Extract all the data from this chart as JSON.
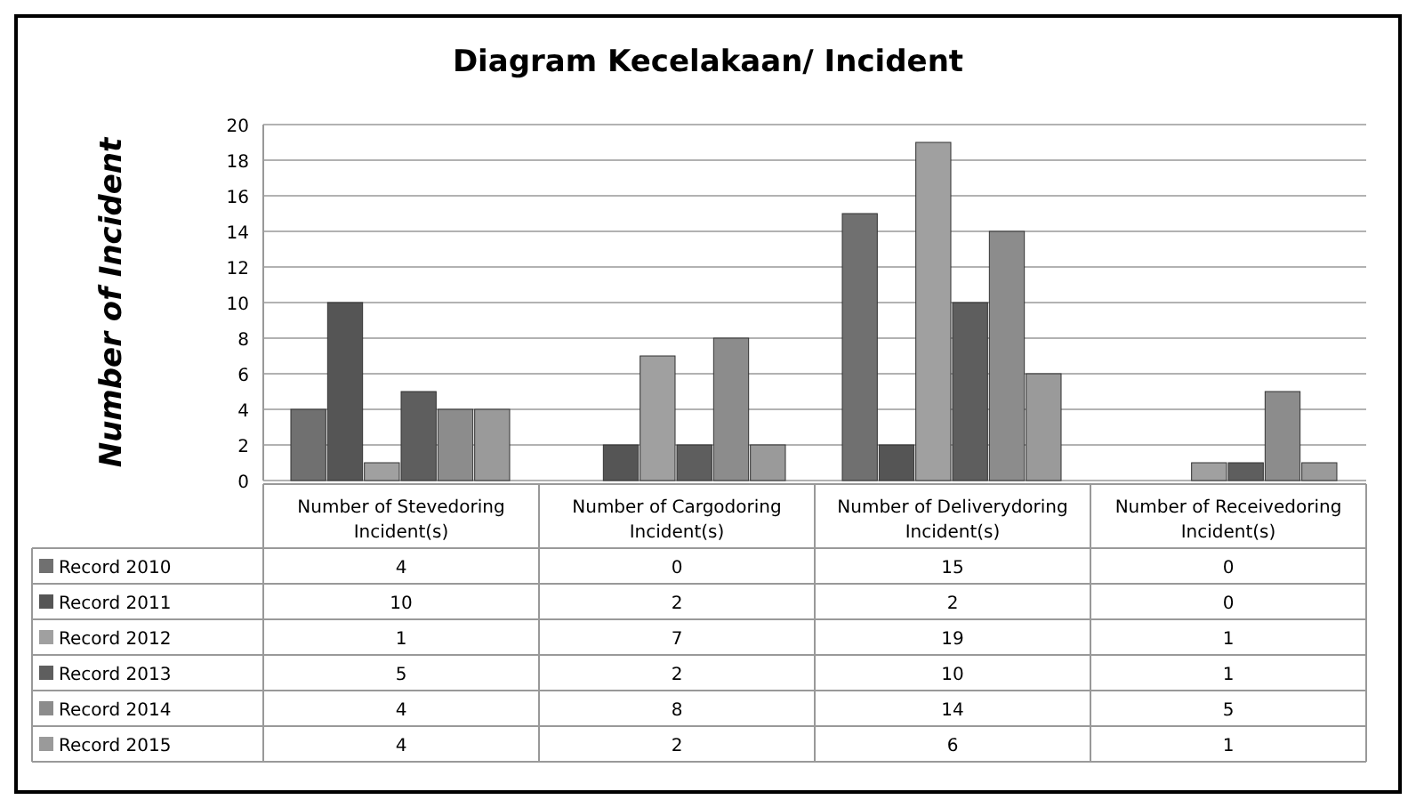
{
  "chart_data": {
    "type": "bar",
    "title": "Diagram Kecelakaan/ Incident",
    "ylabel": "Number of Incident",
    "categories": [
      "Number of Stevedoring Incident(s)",
      "Number of Cargodoring Incident(s)",
      "Number of Deliverydoring Incident(s)",
      "Number of Receivedoring Incident(s)"
    ],
    "series": [
      {
        "name": "Record 2010",
        "color": "#707070",
        "values": [
          4,
          0,
          15,
          0
        ]
      },
      {
        "name": "Record 2011",
        "color": "#555555",
        "values": [
          10,
          2,
          2,
          0
        ]
      },
      {
        "name": "Record 2012",
        "color": "#a0a0a0",
        "values": [
          1,
          7,
          19,
          1
        ]
      },
      {
        "name": "Record 2013",
        "color": "#5e5e5e",
        "values": [
          5,
          2,
          10,
          1
        ]
      },
      {
        "name": "Record 2014",
        "color": "#8c8c8c",
        "values": [
          4,
          8,
          14,
          5
        ]
      },
      {
        "name": "Record 2015",
        "color": "#9a9a9a",
        "values": [
          4,
          2,
          6,
          1
        ]
      }
    ],
    "ylim": [
      0,
      20
    ],
    "yticks": [
      0,
      2,
      4,
      6,
      8,
      10,
      12,
      14,
      16,
      18,
      20
    ],
    "grid": "y",
    "legend": "bottom",
    "data_labels": true
  }
}
